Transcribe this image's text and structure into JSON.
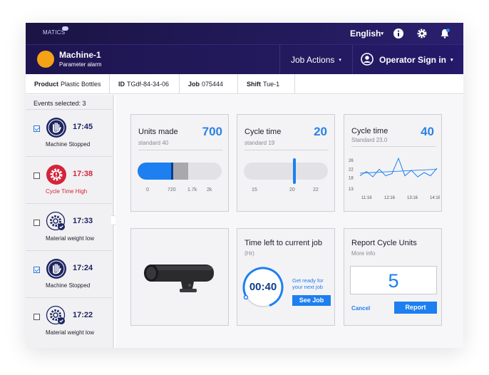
{
  "header": {
    "brand": "MATICS",
    "language": "English",
    "icons": [
      "info-icon",
      "gear-icon",
      "bell-icon"
    ]
  },
  "machine": {
    "name": "Machine-1",
    "status_text": "Parameter alarm",
    "status_color": "#f5a316",
    "job_actions_label": "Job Actions",
    "operator_label": "Operator Sign in"
  },
  "info": [
    {
      "label": "Product",
      "value": "Plastic Bottles"
    },
    {
      "label": "ID",
      "value": "TGdf-84-34-06"
    },
    {
      "label": "Job",
      "value": "075444"
    },
    {
      "label": "Shift",
      "value": "Tue-1"
    }
  ],
  "sidebar": {
    "events_selected": "Events selected: 3",
    "events": [
      {
        "time": "17:45",
        "label": "Machine Stopped",
        "checked": true,
        "icon": "hand-stop-icon",
        "alert": false
      },
      {
        "time": "17:38",
        "label": "Cycle Time High",
        "checked": false,
        "icon": "cog-alert-icon",
        "alert": true
      },
      {
        "time": "17:33",
        "label": "Material weight low",
        "checked": false,
        "icon": "cog-check-icon",
        "alert": false
      },
      {
        "time": "17:24",
        "label": "Machine Stopped",
        "checked": true,
        "icon": "hand-stop-icon",
        "alert": false
      },
      {
        "time": "17:22",
        "label": "Material weight low",
        "checked": false,
        "icon": "cog-check-icon",
        "alert": false
      }
    ]
  },
  "units_card": {
    "title": "Units made",
    "value": "700",
    "sub": "standard 40",
    "ticks": [
      "0",
      "720",
      "1.7k",
      "2k"
    ],
    "progress_fraction": 0.41,
    "grey_fraction": 0.6
  },
  "cycle_card": {
    "title": "Cycle time",
    "value": "20",
    "sub": "standard 19",
    "ticks": [
      "15",
      "20",
      "22"
    ],
    "marker_fraction": 0.6
  },
  "trend_card": {
    "title": "Cycle time",
    "value": "40",
    "sub": "Standard 23.0"
  },
  "chart_data": {
    "type": "line",
    "title": "",
    "xlabel": "",
    "ylabel": "",
    "y_ticks": [
      13,
      18,
      22,
      26
    ],
    "x_ticks": [
      "11:16",
      "12:16",
      "13:16",
      "14:16"
    ],
    "ylim": [
      13,
      28
    ],
    "series": [
      {
        "values": [
          19,
          21,
          18.5,
          22,
          19,
          20,
          27,
          19,
          21.5,
          18.5,
          20.5,
          19,
          22.5
        ]
      },
      {
        "values": [
          20.2,
          20.5,
          20.8,
          21.1,
          21.4,
          21.7,
          22.0
        ]
      }
    ]
  },
  "product_card": {
    "image_icon": "product-device-icon"
  },
  "time_left_card": {
    "title": "Time left to current job",
    "sub": "(Hr)",
    "time": "00:40",
    "hint": "Get ready for your next job",
    "button": "See Job"
  },
  "report_card": {
    "title": "Report Cycle Units",
    "sub": "More info",
    "value": "5",
    "cancel": "Cancel",
    "report": "Report"
  },
  "colors": {
    "accent": "#1d7ff0",
    "header": "#231a5c",
    "alert": "#d4243b",
    "event_icon": "#1c2461"
  }
}
